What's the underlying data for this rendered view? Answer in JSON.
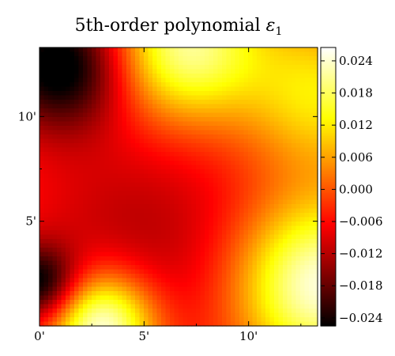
{
  "chart_data": {
    "type": "heatmap",
    "title": {
      "text": "5th-order polynomial",
      "symbol": "ε",
      "subscript": "1"
    },
    "x_range": [
      0,
      13.3
    ],
    "y_range": [
      0,
      13.3
    ],
    "x_ticks": [
      {
        "value": 0,
        "label": "0'"
      },
      {
        "value": 5,
        "label": "5'"
      },
      {
        "value": 10,
        "label": "10'"
      }
    ],
    "y_ticks": [
      {
        "value": 5,
        "label": "5'"
      },
      {
        "value": 10,
        "label": "10'"
      }
    ],
    "colorbar": {
      "range": [
        -0.0255,
        0.0265
      ],
      "ticks": [
        {
          "value": 0.024,
          "label": "0.024"
        },
        {
          "value": 0.018,
          "label": "0.018"
        },
        {
          "value": 0.012,
          "label": "0.012"
        },
        {
          "value": 0.006,
          "label": "0.006"
        },
        {
          "value": 0.0,
          "label": "0.000"
        },
        {
          "value": -0.006,
          "label": "−0.006"
        },
        {
          "value": -0.012,
          "label": "−0.012"
        },
        {
          "value": -0.018,
          "label": "−0.018"
        },
        {
          "value": -0.024,
          "label": "−0.024"
        }
      ]
    },
    "colormap": "hot",
    "features": [
      {
        "x": 1.0,
        "y": 12.5,
        "value": -0.028,
        "spread": 2.2
      },
      {
        "x": 0.0,
        "y": 2.0,
        "value": -0.024,
        "spread": 1.3
      },
      {
        "x": 3.0,
        "y": 0.0,
        "value": 0.03,
        "spread": 1.8
      },
      {
        "x": 7.0,
        "y": 13.3,
        "value": 0.022,
        "spread": 2.5
      },
      {
        "x": 13.3,
        "y": 2.0,
        "value": 0.026,
        "spread": 2.8
      },
      {
        "x": 13.3,
        "y": 11.0,
        "value": 0.012,
        "spread": 2.5
      },
      {
        "x": 5.0,
        "y": 4.0,
        "value": -0.012,
        "spread": 4.5
      }
    ],
    "base_value": -0.002
  }
}
